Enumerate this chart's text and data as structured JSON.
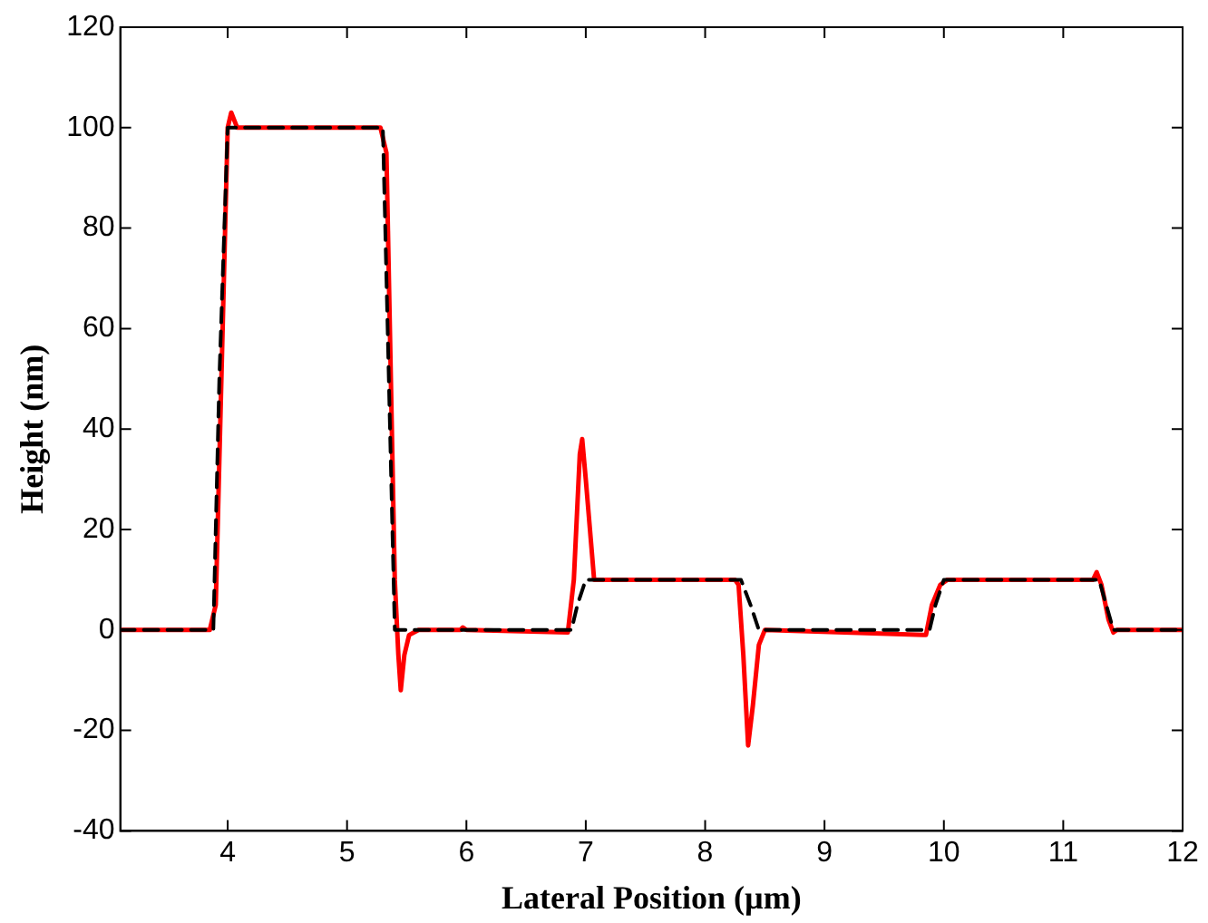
{
  "chart_data": {
    "type": "line",
    "xlabel": "Lateral Position (µm)",
    "ylabel": "Height (nm)",
    "xlim": [
      3.1,
      12
    ],
    "xticks": [
      4,
      5,
      6,
      7,
      8,
      9,
      10,
      11,
      12
    ],
    "ylim": [
      -40,
      120
    ],
    "yticks": [
      -40,
      -20,
      0,
      20,
      40,
      60,
      80,
      100,
      120
    ],
    "grid": false,
    "legend": false,
    "marker": "none",
    "series": [
      {
        "color": "#000000",
        "line_style": "dashed",
        "x": [
          3.1,
          3.88,
          3.93,
          4.0,
          5.3,
          5.35,
          5.4,
          6.88,
          6.93,
          7.0,
          8.3,
          8.38,
          8.45,
          9.88,
          9.93,
          10.0,
          11.3,
          11.36,
          11.42,
          12
        ],
        "values": [
          0,
          0,
          50,
          100,
          100,
          50,
          0,
          0,
          5,
          10,
          10,
          5,
          0,
          0,
          5,
          10,
          10,
          5,
          0,
          0
        ]
      },
      {
        "color": "#ff0000",
        "line_style": "solid",
        "x": [
          3.1,
          3.85,
          3.9,
          4.0,
          4.03,
          4.08,
          5.28,
          5.33,
          5.4,
          5.43,
          5.45,
          5.48,
          5.52,
          5.6,
          5.95,
          5.97,
          6.0,
          6.85,
          6.9,
          6.95,
          6.97,
          7.0,
          7.07,
          8.25,
          8.28,
          8.32,
          8.36,
          8.4,
          8.45,
          8.5,
          9.85,
          9.9,
          9.97,
          10.03,
          11.25,
          11.28,
          11.32,
          11.38,
          11.42,
          11.45,
          12
        ],
        "values": [
          0,
          0,
          5,
          100,
          103,
          100,
          100,
          95,
          10,
          -5,
          -12,
          -5,
          -1,
          0,
          0,
          0.5,
          0,
          -0.5,
          10,
          35,
          38,
          30,
          10,
          10,
          9,
          -5,
          -23,
          -15,
          -3,
          0,
          -1,
          5,
          9,
          10,
          10,
          11.5,
          9,
          2,
          -0.5,
          0,
          0
        ]
      }
    ]
  }
}
